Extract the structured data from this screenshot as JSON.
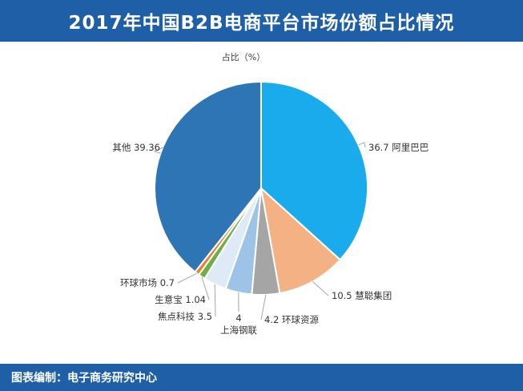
{
  "header": {
    "title": "2017年中国B2B电商平台市场份额占比情况"
  },
  "footer": {
    "text": "图表编制：电子商务研究中心"
  },
  "chart_data": {
    "type": "pie",
    "title": "",
    "series_label": "占比（%）",
    "colors": {
      "header_bg": "#1f5fa8",
      "leader_line": "#a6a6a6"
    },
    "slices": [
      {
        "name": "阿里巴巴",
        "value": 36.7,
        "color": "#1aabec"
      },
      {
        "name": "慧聪集团",
        "value": 10.5,
        "color": "#f4b183"
      },
      {
        "name": "环球资源",
        "value": 4.2,
        "color": "#a5a5a5"
      },
      {
        "name": "上海钢联",
        "value": 4,
        "color": "#9dc3e6"
      },
      {
        "name": "焦点科技",
        "value": 3.5,
        "color": "#deebf7"
      },
      {
        "name": "生意宝",
        "value": 1.04,
        "color": "#70ad47"
      },
      {
        "name": "环球市场",
        "value": 0.7,
        "color": "#ed7d31"
      },
      {
        "name": "其他",
        "value": 39.36,
        "color": "#2e75b6"
      }
    ]
  }
}
